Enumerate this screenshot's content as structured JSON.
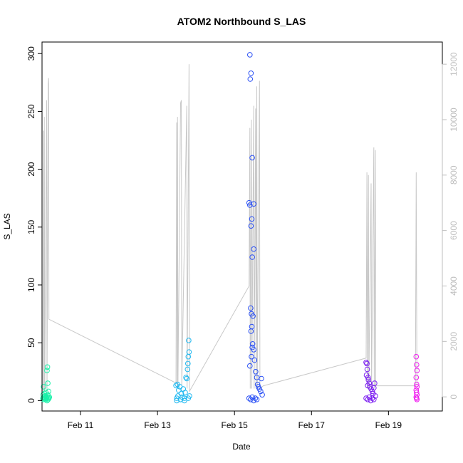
{
  "chart_data": {
    "type": "scatter",
    "title": "ATOM2 Northbound S_LAS",
    "xlabel": "Date",
    "ylabel": "S_LAS",
    "x_domain_days": [
      10.0,
      20.4
    ],
    "ylim": [
      -9,
      310
    ],
    "y2lim": [
      -510,
      12800
    ],
    "x_ticks": [
      {
        "value": 11,
        "label": "Feb 11"
      },
      {
        "value": 13,
        "label": "Feb 13"
      },
      {
        "value": 15,
        "label": "Feb 15"
      },
      {
        "value": 17,
        "label": "Feb 17"
      },
      {
        "value": 19,
        "label": "Feb 19"
      }
    ],
    "y_ticks": [
      0,
      50,
      100,
      150,
      200,
      250,
      300
    ],
    "y2_ticks": [
      0,
      2000,
      4000,
      6000,
      8000,
      10000,
      12000
    ],
    "secondary_line": {
      "color": "#c8c8c8",
      "points": [
        [
          10.02,
          200
        ],
        [
          10.04,
          9600
        ],
        [
          10.05,
          200
        ],
        [
          10.06,
          10100
        ],
        [
          10.07,
          200
        ],
        [
          10.12,
          10700
        ],
        [
          10.13,
          200
        ],
        [
          10.16,
          11300
        ],
        [
          10.17,
          11500
        ],
        [
          10.18,
          2800
        ],
        [
          13.48,
          500
        ],
        [
          13.5,
          9900
        ],
        [
          13.51,
          300
        ],
        [
          13.52,
          10100
        ],
        [
          13.53,
          300
        ],
        [
          13.6,
          10600
        ],
        [
          13.62,
          10700
        ],
        [
          13.63,
          400
        ],
        [
          13.76,
          10500
        ],
        [
          13.77,
          300
        ],
        [
          13.82,
          12000
        ],
        [
          13.83,
          200
        ],
        [
          15.38,
          4000
        ],
        [
          15.4,
          9700
        ],
        [
          15.41,
          300
        ],
        [
          15.44,
          10000
        ],
        [
          15.45,
          300
        ],
        [
          15.5,
          10500
        ],
        [
          15.51,
          300
        ],
        [
          15.55,
          10400
        ],
        [
          15.56,
          300
        ],
        [
          15.58,
          11200
        ],
        [
          15.59,
          300
        ],
        [
          15.65,
          11400
        ],
        [
          15.66,
          300
        ],
        [
          15.75,
          400
        ],
        [
          18.42,
          1400
        ],
        [
          18.44,
          8100
        ],
        [
          18.45,
          300
        ],
        [
          18.48,
          8000
        ],
        [
          18.49,
          300
        ],
        [
          18.55,
          7700
        ],
        [
          18.56,
          300
        ],
        [
          18.62,
          9000
        ],
        [
          18.63,
          300
        ],
        [
          18.66,
          8900
        ],
        [
          18.67,
          400
        ],
        [
          19.7,
          400
        ],
        [
          19.72,
          8100
        ],
        [
          19.74,
          400
        ]
      ]
    },
    "series": [
      {
        "color": "#19f0a8",
        "points": [
          [
            10.02,
            2
          ],
          [
            10.03,
            5
          ],
          [
            10.04,
            1
          ],
          [
            10.05,
            3
          ],
          [
            10.06,
            6
          ],
          [
            10.07,
            2
          ],
          [
            10.08,
            4
          ],
          [
            10.09,
            1
          ],
          [
            10.1,
            7
          ],
          [
            10.11,
            3
          ],
          [
            10.12,
            2
          ],
          [
            10.13,
            26
          ],
          [
            10.14,
            29
          ],
          [
            10.15,
            5
          ],
          [
            10.16,
            1
          ],
          [
            10.17,
            8
          ],
          [
            10.18,
            2
          ],
          [
            10.19,
            3
          ],
          [
            10.04,
            12
          ],
          [
            10.07,
            4
          ],
          [
            10.1,
            2
          ],
          [
            10.13,
            0
          ],
          [
            10.15,
            15
          ],
          [
            10.16,
            3
          ]
        ]
      },
      {
        "color": "#1fb8f0",
        "points": [
          [
            13.48,
            13
          ],
          [
            13.5,
            2
          ],
          [
            13.52,
            14
          ],
          [
            13.53,
            4
          ],
          [
            13.55,
            9
          ],
          [
            13.58,
            12
          ],
          [
            13.6,
            1
          ],
          [
            13.62,
            6
          ],
          [
            13.64,
            3
          ],
          [
            13.67,
            10
          ],
          [
            13.7,
            2
          ],
          [
            13.72,
            7
          ],
          [
            13.74,
            20
          ],
          [
            13.76,
            19
          ],
          [
            13.78,
            27
          ],
          [
            13.79,
            32
          ],
          [
            13.8,
            38
          ],
          [
            13.81,
            52
          ],
          [
            13.82,
            42
          ],
          [
            13.83,
            4
          ],
          [
            13.5,
            0
          ],
          [
            13.6,
            1
          ],
          [
            13.7,
            0
          ],
          [
            13.8,
            2
          ]
        ]
      },
      {
        "color": "#2a50f5",
        "points": [
          [
            15.4,
            299
          ],
          [
            15.43,
            283
          ],
          [
            15.41,
            278
          ],
          [
            15.38,
            171
          ],
          [
            15.4,
            169
          ],
          [
            15.5,
            170
          ],
          [
            15.45,
            157
          ],
          [
            15.43,
            151
          ],
          [
            15.5,
            131
          ],
          [
            15.46,
            124
          ],
          [
            15.42,
            80
          ],
          [
            15.48,
            73
          ],
          [
            15.44,
            75
          ],
          [
            15.45,
            64
          ],
          [
            15.43,
            60
          ],
          [
            15.47,
            49
          ],
          [
            15.46,
            46
          ],
          [
            15.5,
            44
          ],
          [
            15.44,
            38
          ],
          [
            15.52,
            35
          ],
          [
            15.4,
            30
          ],
          [
            15.55,
            25
          ],
          [
            15.58,
            20
          ],
          [
            15.6,
            14
          ],
          [
            15.62,
            12
          ],
          [
            15.65,
            10
          ],
          [
            15.68,
            8
          ],
          [
            15.7,
            19
          ],
          [
            15.46,
            210
          ],
          [
            15.72,
            5
          ],
          [
            15.38,
            2
          ],
          [
            15.42,
            1
          ],
          [
            15.46,
            3
          ],
          [
            15.5,
            0
          ],
          [
            15.54,
            2
          ],
          [
            15.58,
            1
          ]
        ]
      },
      {
        "color": "#7a1cf0",
        "points": [
          [
            18.42,
            33
          ],
          [
            18.44,
            32
          ],
          [
            18.45,
            27
          ],
          [
            18.43,
            22
          ],
          [
            18.47,
            20
          ],
          [
            18.48,
            18
          ],
          [
            18.5,
            15
          ],
          [
            18.46,
            13
          ],
          [
            18.52,
            12
          ],
          [
            18.55,
            10
          ],
          [
            18.58,
            8
          ],
          [
            18.6,
            6
          ],
          [
            18.62,
            11
          ],
          [
            18.64,
            15
          ],
          [
            18.66,
            4
          ],
          [
            18.42,
            2
          ],
          [
            18.46,
            1
          ],
          [
            18.5,
            3
          ],
          [
            18.54,
            0
          ],
          [
            18.58,
            2
          ],
          [
            18.62,
            1
          ]
        ]
      },
      {
        "color": "#f01cf0",
        "points": [
          [
            19.72,
            38
          ],
          [
            19.73,
            31
          ],
          [
            19.74,
            26
          ],
          [
            19.72,
            20
          ],
          [
            19.73,
            14
          ],
          [
            19.74,
            12
          ],
          [
            19.72,
            9
          ],
          [
            19.73,
            7
          ],
          [
            19.74,
            5
          ],
          [
            19.72,
            3
          ],
          [
            19.73,
            2
          ],
          [
            19.74,
            1
          ]
        ]
      }
    ]
  }
}
